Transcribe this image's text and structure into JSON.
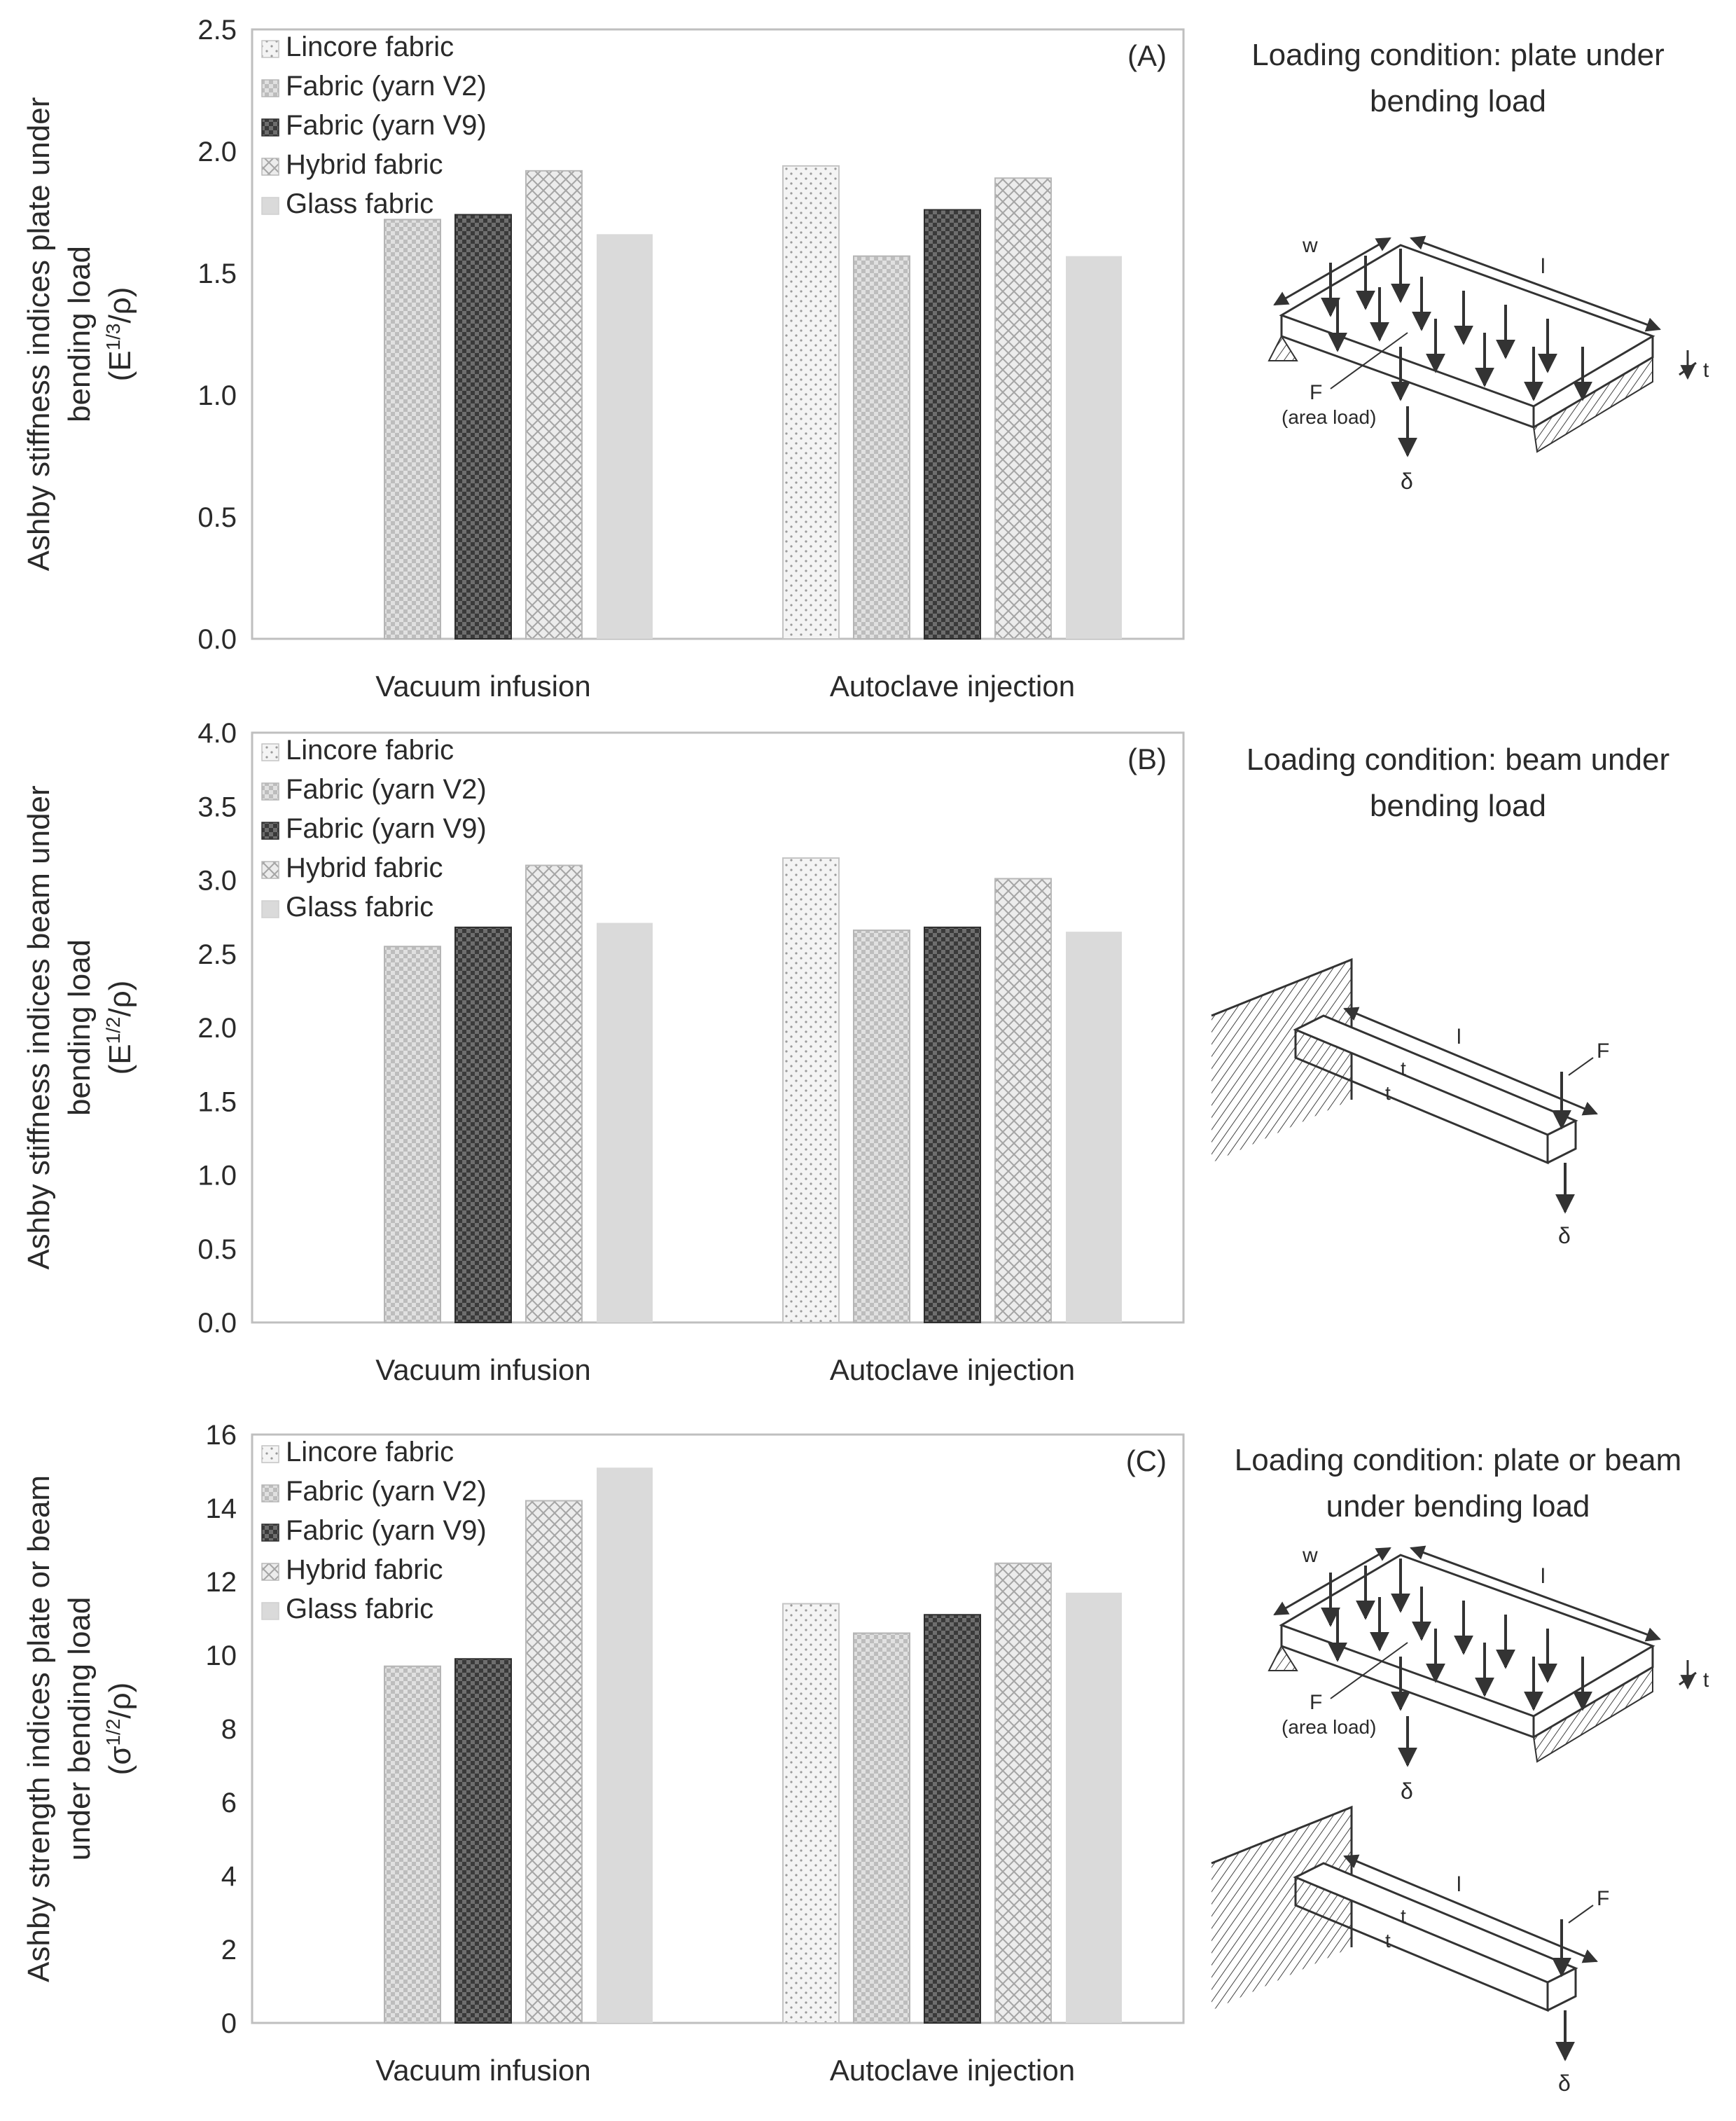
{
  "chart_data": [
    {
      "type": "bar",
      "panel": "(A)",
      "categories": [
        "Vacuum infusion",
        "Autoclave injection"
      ],
      "series": [
        {
          "name": "Lincore fabric",
          "values": [
            null,
            1.94
          ]
        },
        {
          "name": "Fabric (yarn V2)",
          "values": [
            1.72,
            1.57
          ]
        },
        {
          "name": "Fabric (yarn V9)",
          "values": [
            1.74,
            1.76
          ]
        },
        {
          "name": "Hybrid fabric",
          "values": [
            1.92,
            1.89
          ]
        },
        {
          "name": "Glass fabric",
          "values": [
            1.66,
            1.57
          ]
        }
      ],
      "ylabel_lines": [
        "Ashby stiffness indices plate under",
        "bending load"
      ],
      "yunit": {
        "base": "(E",
        "sup": "1/3",
        "tail": "/ρ)"
      },
      "ylim": [
        0,
        2.5
      ],
      "yticks": [
        "0.0",
        "0.5",
        "1.0",
        "1.5",
        "2.0",
        "2.5"
      ],
      "legend_position": "top-left",
      "condition_lines": [
        "Loading condition: plate under",
        "bending load"
      ],
      "diagrams": [
        "plate"
      ]
    },
    {
      "type": "bar",
      "panel": "(B)",
      "categories": [
        "Vacuum infusion",
        "Autoclave injection"
      ],
      "series": [
        {
          "name": "Lincore fabric",
          "values": [
            null,
            3.15
          ]
        },
        {
          "name": "Fabric (yarn V2)",
          "values": [
            2.55,
            2.66
          ]
        },
        {
          "name": "Fabric (yarn V9)",
          "values": [
            2.68,
            2.68
          ]
        },
        {
          "name": "Hybrid fabric",
          "values": [
            3.1,
            3.01
          ]
        },
        {
          "name": "Glass fabric",
          "values": [
            2.71,
            2.65
          ]
        }
      ],
      "ylabel_lines": [
        "Ashby stiffness indices beam under",
        "bending load"
      ],
      "yunit": {
        "base": "(E",
        "sup": "1/2",
        "tail": "/ρ)"
      },
      "ylim": [
        0,
        4.0
      ],
      "yticks": [
        "0.0",
        "0.5",
        "1.0",
        "1.5",
        "2.0",
        "2.5",
        "3.0",
        "3.5",
        "4.0"
      ],
      "legend_position": "top-left",
      "condition_lines": [
        "Loading condition: beam under",
        "bending load"
      ],
      "diagrams": [
        "beam"
      ]
    },
    {
      "type": "bar",
      "panel": "(C)",
      "categories": [
        "Vacuum infusion",
        "Autoclave injection"
      ],
      "series": [
        {
          "name": "Lincore fabric",
          "values": [
            null,
            11.4
          ]
        },
        {
          "name": "Fabric (yarn V2)",
          "values": [
            9.7,
            10.6
          ]
        },
        {
          "name": "Fabric (yarn V9)",
          "values": [
            9.9,
            11.1
          ]
        },
        {
          "name": "Hybrid fabric",
          "values": [
            14.2,
            12.5
          ]
        },
        {
          "name": "Glass fabric",
          "values": [
            15.1,
            11.7
          ]
        }
      ],
      "ylabel_lines": [
        "Ashby strength indices plate or beam",
        "under bending load"
      ],
      "yunit": {
        "base": "(σ",
        "sup": "1/2",
        "tail": "/ρ)"
      },
      "ylim": [
        0,
        16
      ],
      "yticks": [
        "0",
        "2",
        "4",
        "6",
        "8",
        "10",
        "12",
        "14",
        "16"
      ],
      "legend_position": "top-left",
      "condition_lines": [
        "Loading condition: plate or beam",
        "under bending load"
      ],
      "diagrams": [
        "plate",
        "beam"
      ]
    }
  ],
  "diagram_labels": {
    "width": "w",
    "length": "l",
    "thickness": "t",
    "force": "F",
    "area_load": "(area load)",
    "deflection": "δ"
  },
  "colors": {
    "frame": "#bfbfbf",
    "lincore": "#f3f3f3",
    "yarn_v2": "#cfcfcf",
    "yarn_v9": "#4a4a4a",
    "hybrid": "#e2e2e2",
    "glass": "#dadada",
    "text": "#2a2a2a"
  }
}
